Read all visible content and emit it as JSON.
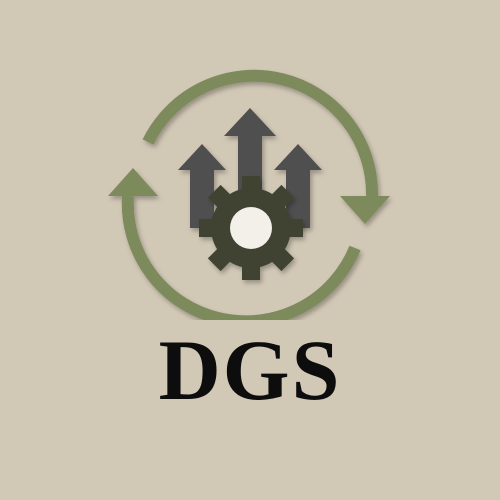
{
  "logo": {
    "wordmark": "DGS",
    "colors": {
      "background": "#d2c8b6",
      "cycle_arrows": "#7d8a5c",
      "growth_arrows": "#505050",
      "gear": "#3f4233",
      "gear_hub": "#f2f0e8",
      "wordmark": "#0d0d0d"
    },
    "icons": [
      "cycle-arrows-icon",
      "growth-arrows-icon",
      "gear-icon"
    ]
  }
}
